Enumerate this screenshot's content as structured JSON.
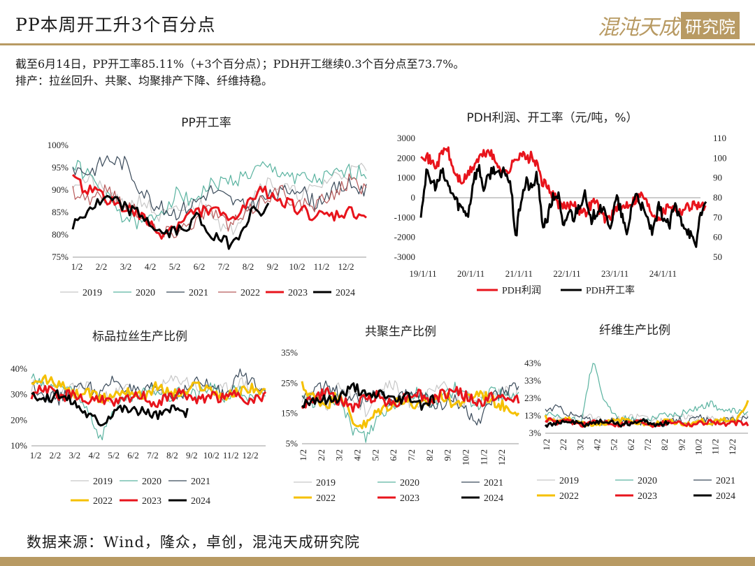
{
  "header": {
    "title": "PP本周开工升3个百分点",
    "logo_text": "混沌天成",
    "logo_box": "研究院"
  },
  "summary": {
    "line1": "截至6月14日，PP开工率85.11%（+3个百分点）；PDH开工继续0.3个百分点至73.7%。",
    "line2": "排产：拉丝回升、共聚、均聚排产下降、纤维持稳。"
  },
  "footer": {
    "source": "数据来源：Wind，隆众，卓创，混沌天成研究院"
  },
  "colors": {
    "brand": "#b89a63",
    "2019": "#c8c8c8",
    "2020": "#5ab3a0",
    "2021": "#3a4a5a",
    "2022": "#b85a5a",
    "2022_bright": "#f5c000",
    "2023": "#e8141c",
    "2024": "#000000",
    "pdh_profit": "#e8141c",
    "pdh_rate": "#000000"
  },
  "chart_data": [
    {
      "id": "pp",
      "type": "line",
      "title": "PP开工率",
      "x_labels": [
        "1/2",
        "2/2",
        "3/2",
        "4/2",
        "5/2",
        "6/2",
        "7/2",
        "8/2",
        "9/2",
        "10/2",
        "11/2",
        "12/2"
      ],
      "y_labels": [
        "75%",
        "80%",
        "85%",
        "90%",
        "95%",
        "100%"
      ],
      "ylim": [
        75,
        100
      ],
      "legend": [
        "2019",
        "2020",
        "2021",
        "2022",
        "2023",
        "2024"
      ],
      "series": [
        {
          "name": "2019",
          "color": "#c8c8c8",
          "width": 1.2,
          "anchors": [
            92,
            92,
            89,
            86,
            88,
            84,
            85,
            87,
            86,
            80,
            86,
            92,
            91,
            89,
            90,
            93,
            94,
            95
          ]
        },
        {
          "name": "2020",
          "color": "#5ab3a0",
          "width": 1.2,
          "anchors": [
            96,
            93,
            88,
            84,
            82,
            85,
            89,
            88,
            91,
            92,
            93,
            95,
            94,
            93,
            92,
            93,
            94,
            94
          ]
        },
        {
          "name": "2021",
          "color": "#3a4a5a",
          "width": 1.2,
          "anchors": [
            95,
            94,
            97,
            96,
            90,
            86,
            85,
            87,
            90,
            88,
            86,
            88,
            89,
            91,
            87,
            90,
            91,
            90
          ]
        },
        {
          "name": "2022",
          "color": "#b85a5a",
          "width": 1.2,
          "anchors": [
            90,
            88,
            90,
            87,
            85,
            80,
            81,
            83,
            86,
            82,
            84,
            88,
            90,
            87,
            86,
            89,
            92,
            90
          ]
        },
        {
          "name": "2023",
          "color": "#e8141c",
          "width": 3,
          "anchors": [
            92,
            90,
            88,
            86,
            84,
            80,
            82,
            85,
            86,
            83,
            86,
            90,
            88,
            86,
            84,
            84,
            85,
            84
          ]
        },
        {
          "name": "2024",
          "color": "#000000",
          "width": 3,
          "anchors": [
            82,
            86,
            88,
            86,
            84,
            80,
            81,
            84,
            79,
            78,
            85,
            86
          ]
        }
      ]
    },
    {
      "id": "pdh",
      "type": "line",
      "title": "PDH利润、开工率（元/吨，%）",
      "x_labels": [
        "19/1/11",
        "20/1/11",
        "21/1/11",
        "22/1/11",
        "23/1/11",
        "24/1/11"
      ],
      "y_left_labels": [
        "-3000",
        "-2000",
        "-1000",
        "0",
        "1000",
        "2000",
        "3000"
      ],
      "y_right_labels": [
        "50",
        "60",
        "70",
        "80",
        "90",
        "100",
        "110"
      ],
      "ylim_left": [
        -3000,
        3000
      ],
      "ylim_right": [
        50,
        110
      ],
      "legend": [
        "PDH利润",
        "PDH开工率"
      ],
      "series": [
        {
          "name": "PDH利润",
          "color": "#e8141c",
          "width": 3,
          "axis": "left",
          "anchors": [
            2300,
            2100,
            1800,
            1600,
            2300,
            2500,
            1500,
            1000,
            800,
            1200,
            1600,
            2000,
            2200,
            2400,
            1800,
            1600,
            1200,
            1500,
            2000,
            2300,
            1900,
            2100,
            1600,
            800,
            500,
            200,
            -300,
            -500,
            -400,
            -200,
            -600,
            -800,
            -400,
            -100,
            -700,
            -1100,
            -900,
            -600,
            -500,
            -300,
            -200,
            0,
            200,
            -400,
            -800,
            -1000,
            -700,
            -300,
            -500,
            -700,
            -500,
            -400,
            -300,
            -400,
            -500
          ]
        },
        {
          "name": "PDH开工率",
          "color": "#000000",
          "width": 3,
          "axis": "right",
          "anchors": [
            72,
            92,
            88,
            86,
            93,
            87,
            82,
            77,
            74,
            72,
            90,
            95,
            84,
            92,
            95,
            90,
            94,
            86,
            60,
            80,
            88,
            84,
            92,
            66,
            70,
            80,
            82,
            63,
            74,
            70,
            77,
            82,
            68,
            72,
            76,
            70,
            66,
            80,
            72,
            60,
            78,
            82,
            74,
            68,
            62,
            75,
            70,
            65,
            76,
            70,
            66,
            62,
            54,
            74,
            75
          ]
        }
      ]
    },
    {
      "id": "lasi",
      "type": "line",
      "title": "标品拉丝生产比例",
      "x_labels": [
        "1/2",
        "2/2",
        "3/2",
        "4/2",
        "5/2",
        "6/2",
        "7/2",
        "8/2",
        "9/2",
        "10/2",
        "11/2",
        "12/2"
      ],
      "y_labels": [
        "10%",
        "20%",
        "30%",
        "40%"
      ],
      "ylim": [
        10,
        40
      ],
      "legend": [
        "2019",
        "2020",
        "2021",
        "2022",
        "2023",
        "2024"
      ],
      "series": [
        {
          "name": "2019",
          "color": "#c8c8c8",
          "width": 1.2,
          "anchors": [
            33,
            36,
            30,
            32,
            34,
            28,
            30,
            33,
            29,
            31,
            35,
            36,
            33,
            30,
            32,
            35,
            33,
            31
          ]
        },
        {
          "name": "2020",
          "color": "#5ab3a0",
          "width": 1.2,
          "anchors": [
            37,
            32,
            34,
            30,
            26,
            13,
            25,
            28,
            30,
            32,
            29,
            31,
            30,
            33,
            29,
            32,
            28,
            30
          ]
        },
        {
          "name": "2021",
          "color": "#3a4a5a",
          "width": 1.2,
          "anchors": [
            34,
            30,
            28,
            31,
            34,
            30,
            36,
            32,
            30,
            33,
            29,
            31,
            35,
            33,
            30,
            38,
            35,
            33
          ]
        },
        {
          "name": "2022",
          "color": "#f5c000",
          "width": 3,
          "anchors": [
            33,
            36,
            34,
            30,
            31,
            28,
            30,
            32,
            29,
            33,
            31,
            30,
            34,
            32,
            29,
            31,
            33,
            30
          ]
        },
        {
          "name": "2023",
          "color": "#e8141c",
          "width": 3,
          "anchors": [
            30,
            33,
            28,
            31,
            27,
            29,
            26,
            28,
            30,
            26,
            29,
            31,
            27,
            30,
            28,
            31,
            27,
            30
          ]
        },
        {
          "name": "2024",
          "color": "#000000",
          "width": 3,
          "anchors": [
            31,
            28,
            30,
            27,
            22,
            19,
            25,
            24,
            23,
            22,
            24,
            23
          ]
        }
      ]
    },
    {
      "id": "gongju",
      "type": "line",
      "title": "共聚生产比例",
      "x_labels": [
        "1/2",
        "2/2",
        "3/2",
        "4/2",
        "5/2",
        "6/2",
        "7/2",
        "8/2",
        "9/2",
        "10/2",
        "11/2",
        "12/2"
      ],
      "y_labels": [
        "5%",
        "15%",
        "25%",
        "35%"
      ],
      "ylim": [
        5,
        35
      ],
      "legend": [
        "2019",
        "2020",
        "2021",
        "2022",
        "2023",
        "2024"
      ],
      "series": [
        {
          "name": "2019",
          "color": "#c8c8c8",
          "width": 1.2,
          "anchors": [
            20,
            22,
            18,
            24,
            20,
            16,
            22,
            25,
            20,
            18,
            21,
            24,
            20,
            19,
            22,
            20,
            23,
            21
          ]
        },
        {
          "name": "2020",
          "color": "#5ab3a0",
          "width": 1.2,
          "anchors": [
            21,
            19,
            22,
            18,
            10,
            7,
            14,
            18,
            20,
            22,
            19,
            21,
            23,
            20,
            18,
            22,
            20,
            21
          ]
        },
        {
          "name": "2021",
          "color": "#3a4a5a",
          "width": 1.2,
          "anchors": [
            20,
            22,
            24,
            21,
            19,
            20,
            22,
            18,
            21,
            23,
            19,
            17,
            20,
            15,
            12,
            20,
            22,
            24
          ]
        },
        {
          "name": "2022",
          "color": "#f5c000",
          "width": 3,
          "anchors": [
            24,
            20,
            18,
            22,
            12,
            11,
            16,
            18,
            20,
            17,
            19,
            21,
            18,
            20,
            22,
            19,
            17,
            16
          ]
        },
        {
          "name": "2023",
          "color": "#e8141c",
          "width": 3,
          "anchors": [
            18,
            20,
            22,
            19,
            17,
            20,
            21,
            18,
            20,
            22,
            19,
            21,
            23,
            20,
            18,
            21,
            19,
            20
          ]
        },
        {
          "name": "2024",
          "color": "#000000",
          "width": 3,
          "anchors": [
            18,
            20,
            19,
            21,
            24,
            20,
            22,
            19,
            21,
            18,
            20
          ]
        }
      ]
    },
    {
      "id": "xianwei",
      "type": "line",
      "title": "纤维生产比例",
      "x_labels": [
        "1/2",
        "2/2",
        "3/2",
        "4/2",
        "5/2",
        "6/2",
        "7/2",
        "8/2",
        "9/2",
        "10/2",
        "11/2",
        "12/2"
      ],
      "y_labels": [
        "3%",
        "13%",
        "23%",
        "33%",
        "43%"
      ],
      "ylim": [
        3,
        43
      ],
      "legend": [
        "2019",
        "2020",
        "2021",
        "2022",
        "2023",
        "2024"
      ],
      "series": [
        {
          "name": "2019",
          "color": "#c8c8c8",
          "width": 1.2,
          "anchors": [
            10,
            12,
            11,
            13,
            12,
            10,
            11,
            12,
            13,
            11,
            10,
            12,
            13,
            11,
            12,
            10,
            12,
            13
          ]
        },
        {
          "name": "2020",
          "color": "#5ab3a0",
          "width": 1.2,
          "anchors": [
            14,
            12,
            11,
            10,
            45,
            20,
            12,
            11,
            10,
            12,
            14,
            13,
            16,
            18,
            20,
            15,
            16,
            14
          ]
        },
        {
          "name": "2021",
          "color": "#3a4a5a",
          "width": 1.2,
          "anchors": [
            16,
            18,
            14,
            12,
            10,
            9,
            11,
            10,
            9,
            10,
            8,
            11,
            10,
            12,
            9,
            10,
            11,
            12
          ]
        },
        {
          "name": "2022",
          "color": "#f5c000",
          "width": 3,
          "anchors": [
            12,
            10,
            11,
            9,
            8,
            9,
            10,
            11,
            9,
            8,
            10,
            9,
            8,
            10,
            9,
            11,
            10,
            22
          ]
        },
        {
          "name": "2023",
          "color": "#e8141c",
          "width": 3,
          "anchors": [
            11,
            9,
            10,
            8,
            9,
            10,
            8,
            9,
            10,
            8,
            9,
            10,
            8,
            9,
            10,
            8,
            9,
            8
          ]
        },
        {
          "name": "2024",
          "color": "#000000",
          "width": 3,
          "anchors": [
            8,
            9,
            10,
            8,
            9,
            10,
            8,
            9,
            10,
            8,
            9
          ]
        }
      ]
    }
  ]
}
